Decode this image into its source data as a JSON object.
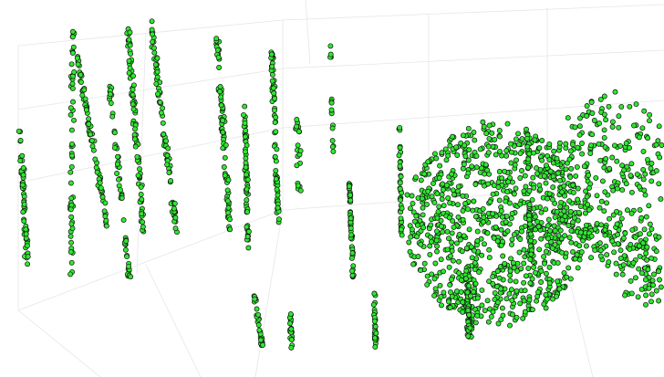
{
  "chart_data": {
    "type": "scatter",
    "title": "",
    "xlabel": "",
    "ylabel": "",
    "grid": true,
    "point_color": "#2ee82e",
    "edge_color": "#111111",
    "background": "#ffffff",
    "series": [
      {
        "kind": "trunk",
        "base": [
          30,
          296
        ],
        "top": [
          22,
          140
        ],
        "count": 60,
        "spread": 6
      },
      {
        "kind": "trunk",
        "base": [
          78,
          305
        ],
        "top": [
          80,
          30
        ],
        "count": 55,
        "spread": 5
      },
      {
        "kind": "trunk",
        "base": [
          118,
          248
        ],
        "top": [
          84,
          60
        ],
        "count": 75,
        "spread": 6
      },
      {
        "kind": "trunk",
        "base": [
          142,
          305
        ],
        "top": [
          120,
          90
        ],
        "count": 55,
        "spread": 5
      },
      {
        "kind": "trunk",
        "base": [
          158,
          262
        ],
        "top": [
          140,
          28
        ],
        "count": 85,
        "spread": 6
      },
      {
        "kind": "trunk",
        "base": [
          195,
          265
        ],
        "top": [
          165,
          22
        ],
        "count": 80,
        "spread": 6
      },
      {
        "kind": "trunk",
        "base": [
          252,
          255
        ],
        "top": [
          238,
          40
        ],
        "count": 80,
        "spread": 6
      },
      {
        "kind": "trunk",
        "base": [
          272,
          272
        ],
        "top": [
          268,
          110
        ],
        "count": 60,
        "spread": 4
      },
      {
        "kind": "trunk",
        "base": [
          305,
          245
        ],
        "top": [
          298,
          55
        ],
        "count": 70,
        "spread": 5
      },
      {
        "kind": "trunk",
        "base": [
          328,
          212
        ],
        "top": [
          326,
          128
        ],
        "count": 22,
        "spread": 8
      },
      {
        "kind": "trunk",
        "base": [
          365,
          170
        ],
        "top": [
          362,
          45
        ],
        "count": 16,
        "spread": 2
      },
      {
        "kind": "trunk",
        "base": [
          387,
          304
        ],
        "top": [
          383,
          198
        ],
        "count": 55,
        "spread": 3
      },
      {
        "kind": "trunk",
        "base": [
          412,
          382
        ],
        "top": [
          410,
          320
        ],
        "count": 30,
        "spread": 4
      },
      {
        "kind": "trunk",
        "base": [
          320,
          382
        ],
        "top": [
          318,
          342
        ],
        "count": 20,
        "spread": 4
      },
      {
        "kind": "trunk",
        "base": [
          288,
          382
        ],
        "top": [
          278,
          318
        ],
        "count": 28,
        "spread": 4
      },
      {
        "kind": "trunk",
        "base": [
          440,
          258
        ],
        "top": [
          438,
          135
        ],
        "count": 40,
        "spread": 3
      },
      {
        "kind": "crown",
        "center": [
          545,
          245
        ],
        "rx": 100,
        "ry": 110,
        "count": 900
      },
      {
        "kind": "crown",
        "center": [
          670,
          195
        ],
        "rx": 65,
        "ry": 95,
        "count": 300
      },
      {
        "kind": "crown",
        "center": [
          705,
          295
        ],
        "rx": 30,
        "ry": 40,
        "count": 80
      },
      {
        "kind": "trunk",
        "base": [
          515,
          370
        ],
        "top": [
          512,
          290
        ],
        "count": 70,
        "spread": 8
      },
      {
        "kind": "trunk",
        "base": [
          582,
          285
        ],
        "top": [
          578,
          145
        ],
        "count": 50,
        "spread": 4
      }
    ]
  }
}
